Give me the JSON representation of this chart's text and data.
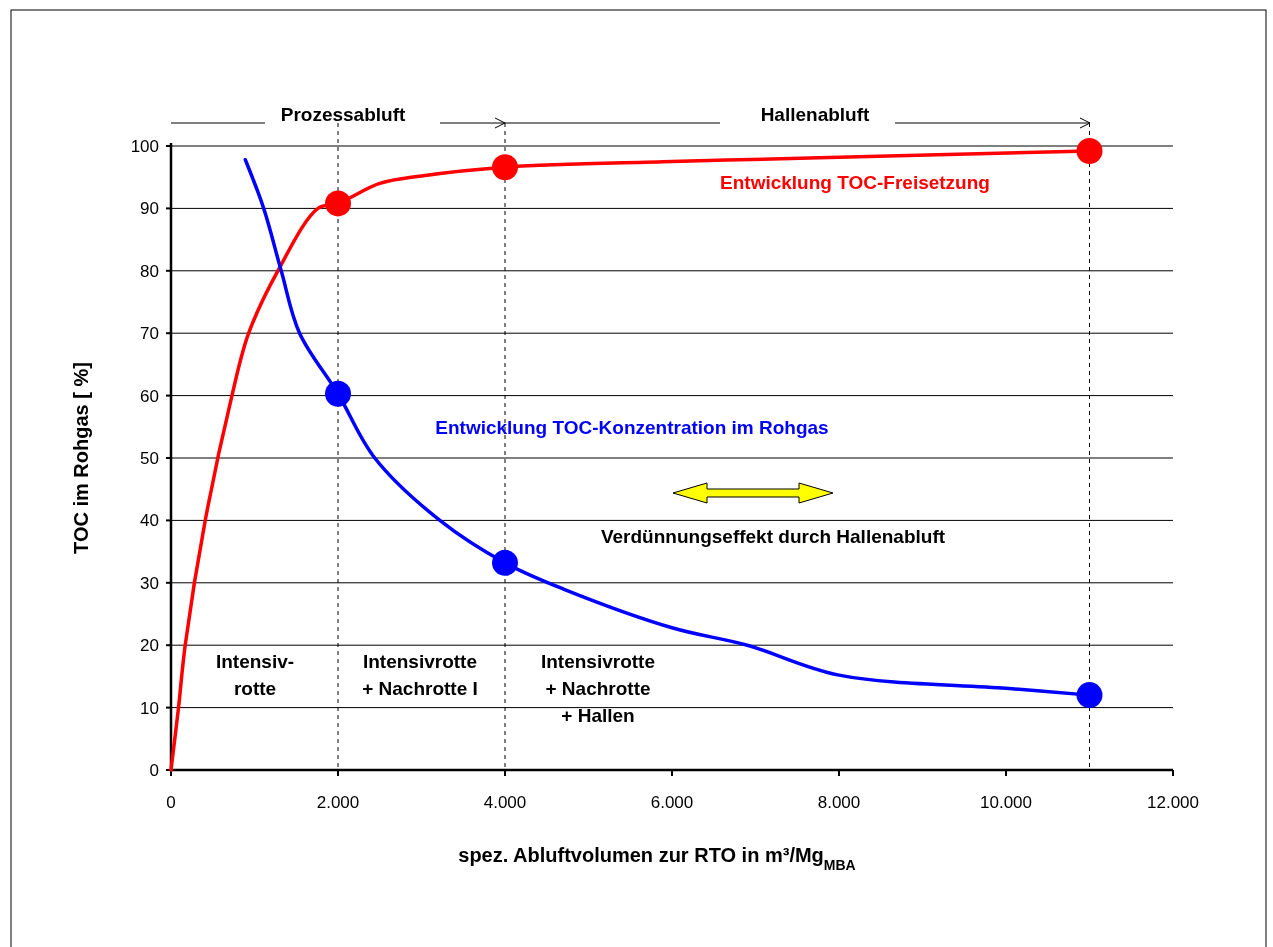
{
  "chart_data": {
    "type": "line",
    "xlabel": "spez. Abluftvolumen zur RTO  in m³/Mg$_{MBA}$",
    "ylabel": "TOC im Rohgas [ %]",
    "xlim": [
      0,
      12000
    ],
    "ylim": [
      0,
      100
    ],
    "xticks": [
      0,
      {
        "value": 2000,
        "label": "2.000"
      },
      {
        "value": 4000,
        "label": "4.000"
      },
      {
        "value": 6000,
        "label": "6.000"
      },
      {
        "value": 8000,
        "label": "8.000"
      },
      {
        "value": 10000,
        "label": "10.000"
      },
      {
        "value": 12000,
        "label": "12.000"
      }
    ],
    "yticks": [
      0,
      10,
      20,
      30,
      40,
      50,
      60,
      70,
      80,
      90,
      100
    ],
    "grid": "y",
    "line_style": "solid",
    "series": [
      {
        "name": "Entwicklung TOC-Freisetzung",
        "color": "#ff0000",
        "marker": "none",
        "x": [
          0,
          90,
          170,
          410,
          730,
          930,
          1280,
          1760,
          2000,
          2500,
          3000,
          4000,
          6000,
          8000,
          11000
        ],
        "values": [
          0,
          10,
          20,
          40,
          60,
          70,
          80,
          90,
          90.8,
          94,
          95.2,
          96.6,
          97.5,
          98.2,
          99.2
        ]
      },
      {
        "name": "Entwicklung TOC-Konzentration im Rohgas",
        "color": "#0000ff",
        "marker": "none",
        "x": [
          890,
          1110,
          1320,
          1540,
          2000,
          2440,
          3220,
          4000,
          4700,
          6000,
          6900,
          8000,
          10000,
          11000
        ],
        "values": [
          97.8,
          90,
          80,
          70,
          60.3,
          50,
          40,
          33.2,
          29,
          22.8,
          20,
          15.2,
          13.1,
          12
        ]
      },
      {
        "type": "scatter",
        "color": "#ff0000",
        "marker": "circle",
        "x": [
          2000,
          4000,
          11000
        ],
        "values": [
          90.8,
          96.6,
          99.2
        ]
      },
      {
        "type": "scatter",
        "color": "#0000ff",
        "marker": "circle",
        "x": [
          2000,
          4000,
          11000
        ],
        "values": [
          60.3,
          33.2,
          12
        ]
      }
    ],
    "ref_lines": [
      {
        "axis": "x",
        "value": 2000,
        "line_style": "dashed",
        "color": "#000000"
      },
      {
        "axis": "x",
        "value": 4000,
        "line_style": "dashed",
        "color": "#000000"
      },
      {
        "axis": "x",
        "value": 11000,
        "line_style": "dashed",
        "color": "#000000"
      }
    ],
    "annotations": [
      "Prozessabluft",
      "Hallenabluft",
      "Verdünnungseffekt durch Hallenabluft",
      "Intensiv-\nrotte",
      "Intensivrotte\n+ Nachrotte I",
      "Intensivrotte\n+ Nachrotte\n+ Hallen"
    ]
  }
}
